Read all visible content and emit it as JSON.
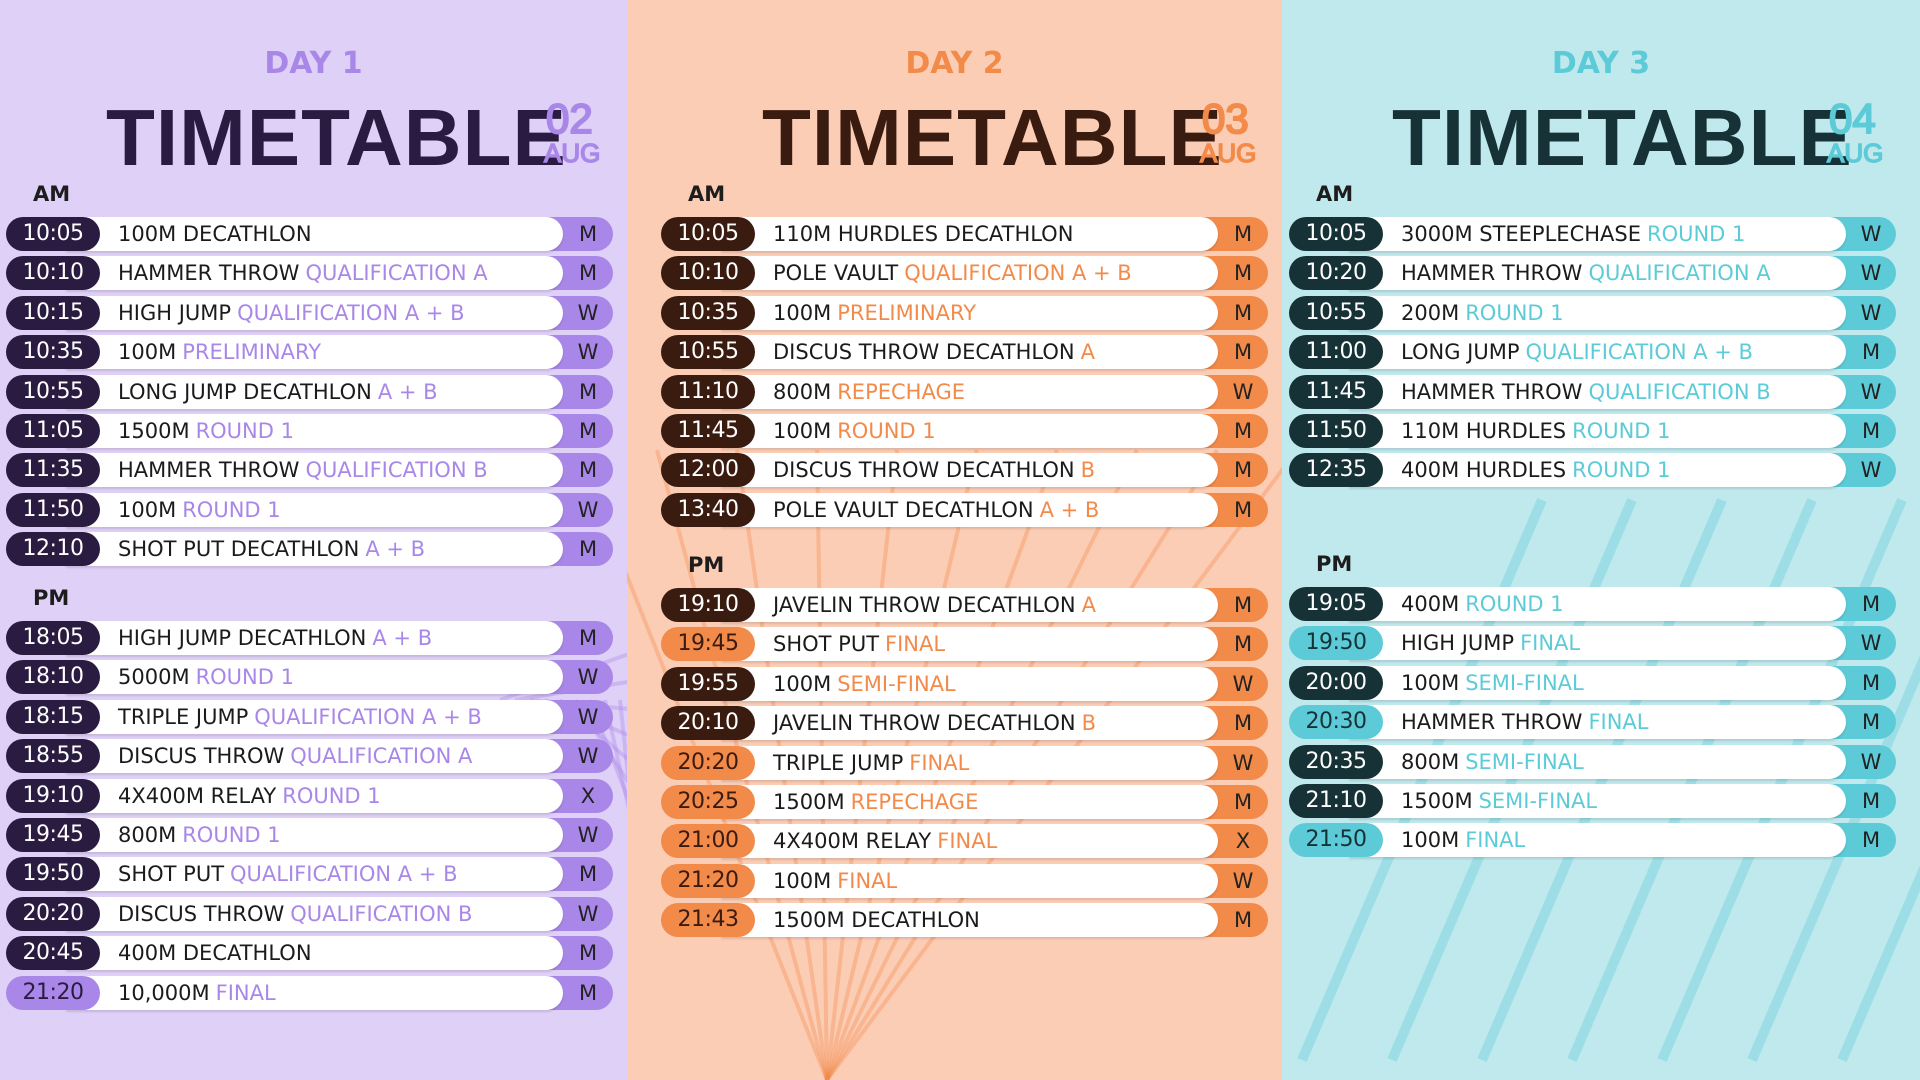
{
  "days": [
    {
      "day": "DAY 1",
      "title": "TIMETABLE",
      "date": "02",
      "month": "AUG",
      "am_label": "AM",
      "pm_label": "PM",
      "am": [
        {
          "time": "10:05",
          "event": "100M DECATHLON",
          "phase": null,
          "gender": "M"
        },
        {
          "time": "10:10",
          "event": "HAMMER THROW",
          "phase": "QUALIFICATION A",
          "gender": "M"
        },
        {
          "time": "10:15",
          "event": "HIGH JUMP",
          "phase": "QUALIFICATION A + B",
          "gender": "W"
        },
        {
          "time": "10:35",
          "event": "100M",
          "phase": "PRELIMINARY",
          "gender": "W"
        },
        {
          "time": "10:55",
          "event": "LONG JUMP DECATHLON",
          "phase": "A + B",
          "gender": "M"
        },
        {
          "time": "11:05",
          "event": "1500M",
          "phase": "ROUND 1",
          "gender": "M"
        },
        {
          "time": "11:35",
          "event": "HAMMER THROW",
          "phase": "QUALIFICATION B",
          "gender": "M"
        },
        {
          "time": "11:50",
          "event": "100M",
          "phase": "ROUND 1",
          "gender": "W"
        },
        {
          "time": "12:10",
          "event": "SHOT PUT DECATHLON",
          "phase": "A + B",
          "gender": "M"
        }
      ],
      "pm": [
        {
          "time": "18:05",
          "event": "HIGH JUMP DECATHLON",
          "phase": "A + B",
          "gender": "M"
        },
        {
          "time": "18:10",
          "event": "5000M",
          "phase": "ROUND 1",
          "gender": "W"
        },
        {
          "time": "18:15",
          "event": "TRIPLE JUMP",
          "phase": "QUALIFICATION A + B",
          "gender": "W"
        },
        {
          "time": "18:55",
          "event": "DISCUS THROW",
          "phase": "QUALIFICATION A",
          "gender": "W"
        },
        {
          "time": "19:10",
          "event": "4X400M RELAY",
          "phase": "ROUND 1",
          "gender": "X"
        },
        {
          "time": "19:45",
          "event": "800M",
          "phase": "ROUND 1",
          "gender": "W"
        },
        {
          "time": "19:50",
          "event": "SHOT PUT",
          "phase": "QUALIFICATION A + B",
          "gender": "M"
        },
        {
          "time": "20:20",
          "event": "DISCUS THROW",
          "phase": "QUALIFICATION B",
          "gender": "W"
        },
        {
          "time": "20:45",
          "event": "400M DECATHLON",
          "phase": null,
          "gender": "M"
        },
        {
          "time": "21:20",
          "event": "10,000M",
          "phase": "FINAL",
          "gender": "M"
        }
      ]
    },
    {
      "day": "DAY 2",
      "title": "TIMETABLE",
      "date": "03",
      "month": "AUG",
      "am_label": "AM",
      "pm_label": "PM",
      "am": [
        {
          "time": "10:05",
          "event": "110M HURDLES DECATHLON",
          "phase": null,
          "gender": "M"
        },
        {
          "time": "10:10",
          "event": "POLE VAULT",
          "phase": "QUALIFICATION A + B",
          "gender": "M"
        },
        {
          "time": "10:35",
          "event": "100M",
          "phase": "PRELIMINARY",
          "gender": "M"
        },
        {
          "time": "10:55",
          "event": "DISCUS THROW DECATHLON",
          "phase": "A",
          "gender": "M"
        },
        {
          "time": "11:10",
          "event": "800M",
          "phase": "REPECHAGE",
          "gender": "W"
        },
        {
          "time": "11:45",
          "event": "100M",
          "phase": "ROUND 1",
          "gender": "M"
        },
        {
          "time": "12:00",
          "event": "DISCUS THROW DECATHLON",
          "phase": "B",
          "gender": "M"
        },
        {
          "time": "13:40",
          "event": "POLE VAULT DECATHLON",
          "phase": "A + B",
          "gender": "M"
        }
      ],
      "pm": [
        {
          "time": "19:10",
          "event": "JAVELIN THROW DECATHLON",
          "phase": "A",
          "gender": "M"
        },
        {
          "time": "19:45",
          "event": "SHOT PUT",
          "phase": "FINAL",
          "gender": "M"
        },
        {
          "time": "19:55",
          "event": "100M",
          "phase": "SEMI-FINAL",
          "gender": "W"
        },
        {
          "time": "20:10",
          "event": "JAVELIN THROW DECATHLON",
          "phase": "B",
          "gender": "M"
        },
        {
          "time": "20:20",
          "event": "TRIPLE JUMP",
          "phase": "FINAL",
          "gender": "W"
        },
        {
          "time": "20:25",
          "event": "1500M",
          "phase": "REPECHAGE",
          "gender": "M"
        },
        {
          "time": "21:00",
          "event": "4X400M RELAY",
          "phase": "FINAL",
          "gender": "X"
        },
        {
          "time": "21:20",
          "event": "100M",
          "phase": "FINAL",
          "gender": "W"
        },
        {
          "time": "21:43",
          "event": "1500M DECATHLON",
          "phase": null,
          "gender": "M"
        }
      ]
    },
    {
      "day": "DAY 3",
      "title": "TIMETABLE",
      "date": "04",
      "month": "AUG",
      "am_label": "AM",
      "pm_label": "PM",
      "am": [
        {
          "time": "10:05",
          "event": "3000M STEEPLECHASE",
          "phase": "ROUND 1",
          "gender": "W"
        },
        {
          "time": "10:20",
          "event": "HAMMER THROW",
          "phase": "QUALIFICATION A",
          "gender": "W"
        },
        {
          "time": "10:55",
          "event": "200M",
          "phase": "ROUND 1",
          "gender": "W"
        },
        {
          "time": "11:00",
          "event": "LONG JUMP",
          "phase": "QUALIFICATION A + B",
          "gender": "M"
        },
        {
          "time": "11:45",
          "event": "HAMMER THROW",
          "phase": "QUALIFICATION B",
          "gender": "W"
        },
        {
          "time": "11:50",
          "event": "110M HURDLES",
          "phase": "ROUND 1",
          "gender": "M"
        },
        {
          "time": "12:35",
          "event": "400M HURDLES",
          "phase": "ROUND 1",
          "gender": "W"
        }
      ],
      "pm": [
        {
          "time": "19:05",
          "event": "400M",
          "phase": "ROUND 1",
          "gender": "M"
        },
        {
          "time": "19:50",
          "event": "HIGH JUMP",
          "phase": "FINAL",
          "gender": "W"
        },
        {
          "time": "20:00",
          "event": "100M",
          "phase": "SEMI-FINAL",
          "gender": "M"
        },
        {
          "time": "20:30",
          "event": "HAMMER THROW",
          "phase": "FINAL",
          "gender": "M"
        },
        {
          "time": "20:35",
          "event": "800M",
          "phase": "SEMI-FINAL",
          "gender": "W"
        },
        {
          "time": "21:10",
          "event": "1500M",
          "phase": "SEMI-FINAL",
          "gender": "M"
        },
        {
          "time": "21:50",
          "event": "100M",
          "phase": "FINAL",
          "gender": "M"
        }
      ]
    }
  ]
}
